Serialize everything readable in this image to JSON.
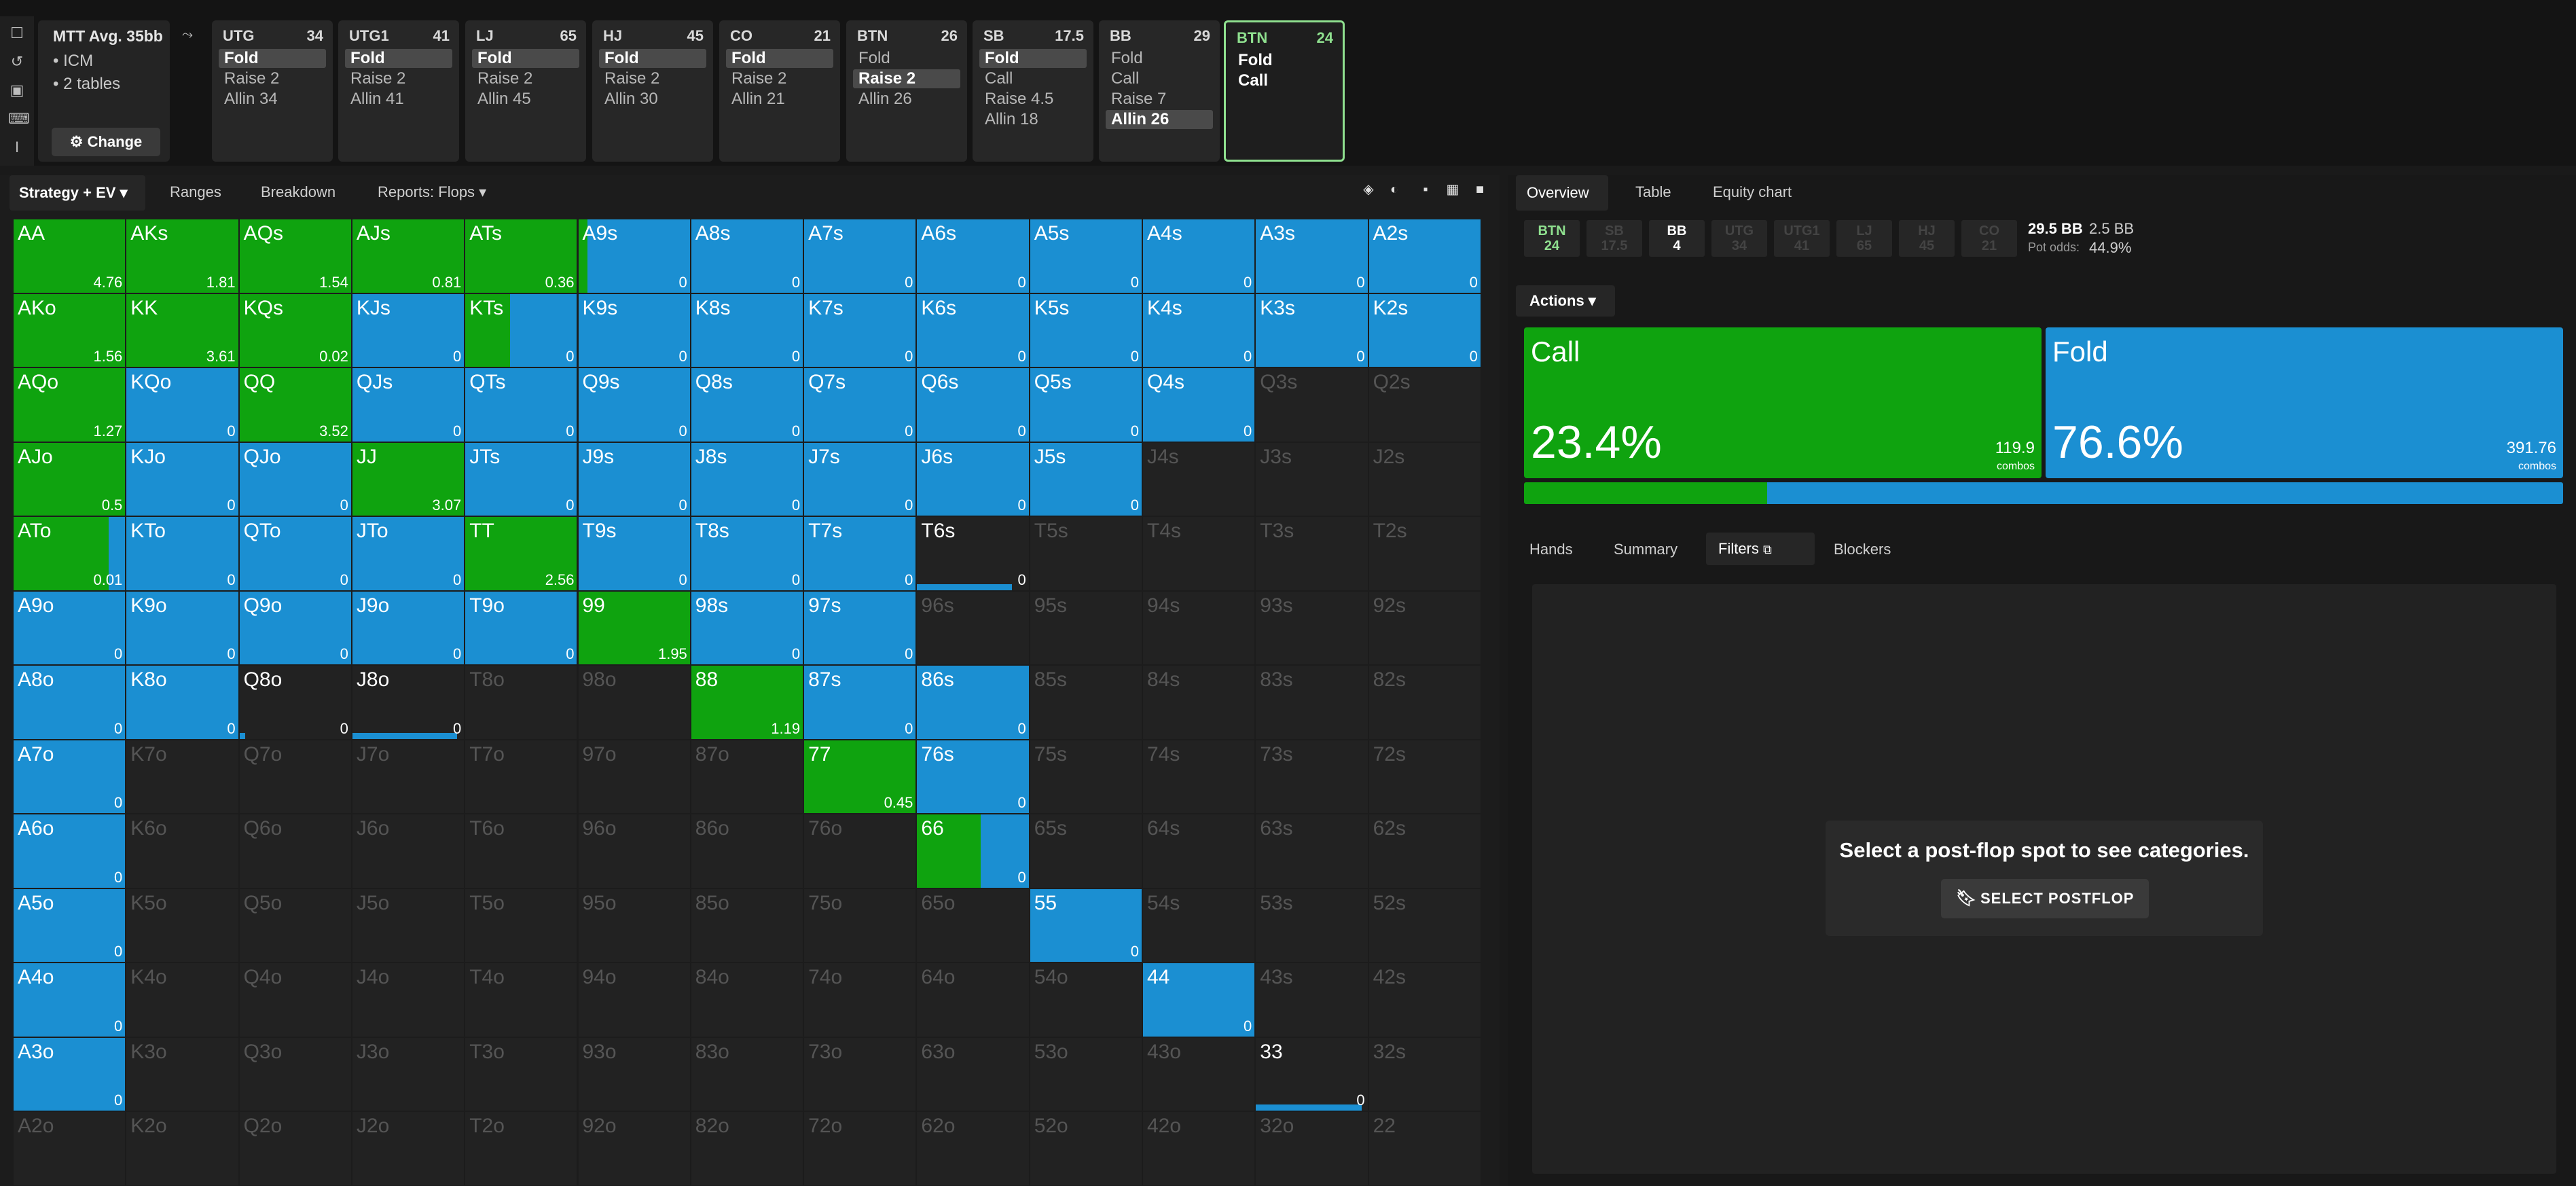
{
  "colors": {
    "raise": "#0fa30f",
    "fold": "#1b8fd2",
    "empty": "#222222",
    "active_border": "#8fe08f"
  },
  "sidebar_icons": [
    "bookmark-icon",
    "history-icon",
    "save-icon",
    "gamepad-icon",
    "text-cursor-icon"
  ],
  "mtt": {
    "title": "MTT Avg. 35bb",
    "items": [
      "• ICM",
      "• 2 tables"
    ],
    "change": "⚙ Change"
  },
  "positions": [
    {
      "name": "UTG",
      "stack": "34",
      "actions": [
        "Fold",
        "Raise 2",
        "Allin 34"
      ],
      "selected": 0
    },
    {
      "name": "UTG1",
      "stack": "41",
      "actions": [
        "Fold",
        "Raise 2",
        "Allin 41"
      ],
      "selected": 0
    },
    {
      "name": "LJ",
      "stack": "65",
      "actions": [
        "Fold",
        "Raise 2",
        "Allin 45"
      ],
      "selected": 0
    },
    {
      "name": "HJ",
      "stack": "45",
      "actions": [
        "Fold",
        "Raise 2",
        "Allin 30"
      ],
      "selected": 0
    },
    {
      "name": "CO",
      "stack": "21",
      "actions": [
        "Fold",
        "Raise 2",
        "Allin 21"
      ],
      "selected": 0
    },
    {
      "name": "BTN",
      "stack": "26",
      "actions": [
        "Fold",
        "Raise 2",
        "Allin 26"
      ],
      "selected": 1
    },
    {
      "name": "SB",
      "stack": "17.5",
      "actions": [
        "Fold",
        "Call",
        "Raise 4.5",
        "Allin 18"
      ],
      "selected": 0
    },
    {
      "name": "BB",
      "stack": "29",
      "actions": [
        "Fold",
        "Call",
        "Raise 7",
        "Allin 26"
      ],
      "selected": 3
    },
    {
      "name": "BTN",
      "stack": "24",
      "actions": [
        "Fold",
        "Call"
      ],
      "selected": -1,
      "active": true
    }
  ],
  "left_tabs": {
    "strategy": "Strategy + EV ▾",
    "ranges": "Ranges",
    "breakdown": "Breakdown",
    "reports": "Reports: Flops ▾"
  },
  "grid": {
    "ranks": [
      "A",
      "K",
      "Q",
      "J",
      "T",
      "9",
      "8",
      "7",
      "6",
      "5",
      "4",
      "3",
      "2"
    ],
    "cells": {
      "AA": {
        "r": 1,
        "v": "4.76"
      },
      "AKs": {
        "r": 1,
        "v": "1.81"
      },
      "AQs": {
        "r": 1,
        "v": "1.54"
      },
      "AJs": {
        "r": 1,
        "v": "0.81"
      },
      "ATs": {
        "r": 1,
        "v": "0.36"
      },
      "A9s": {
        "r": 0.08,
        "v": "0"
      },
      "A8s": {
        "r": 0,
        "v": "0"
      },
      "A7s": {
        "r": 0,
        "v": "0"
      },
      "A6s": {
        "r": 0,
        "v": "0"
      },
      "A5s": {
        "r": 0,
        "v": "0"
      },
      "A4s": {
        "r": 0,
        "v": "0"
      },
      "A3s": {
        "r": 0,
        "v": "0"
      },
      "A2s": {
        "r": 0,
        "v": "0"
      },
      "AKo": {
        "r": 1,
        "v": "1.56"
      },
      "KK": {
        "r": 1,
        "v": "3.61"
      },
      "KQs": {
        "r": 1,
        "v": "0.02"
      },
      "KJs": {
        "r": 0,
        "v": "0"
      },
      "KTs": {
        "r": 0.4,
        "v": "0"
      },
      "K9s": {
        "r": 0,
        "v": "0"
      },
      "K8s": {
        "r": 0,
        "v": "0"
      },
      "K7s": {
        "r": 0,
        "v": "0"
      },
      "K6s": {
        "r": 0,
        "v": "0"
      },
      "K5s": {
        "r": 0,
        "v": "0"
      },
      "K4s": {
        "r": 0,
        "v": "0"
      },
      "K3s": {
        "r": 0,
        "v": "0"
      },
      "K2s": {
        "r": 0,
        "v": "0"
      },
      "AQo": {
        "r": 1,
        "v": "1.27"
      },
      "KQo": {
        "r": 0,
        "v": "0"
      },
      "QQ": {
        "r": 1,
        "v": "3.52"
      },
      "QJs": {
        "r": 0,
        "v": "0"
      },
      "QTs": {
        "r": 0,
        "v": "0"
      },
      "Q9s": {
        "r": 0,
        "v": "0"
      },
      "Q8s": {
        "r": 0,
        "v": "0"
      },
      "Q7s": {
        "r": 0,
        "v": "0"
      },
      "Q6s": {
        "r": 0,
        "v": "0"
      },
      "Q5s": {
        "r": 0,
        "v": "0"
      },
      "Q4s": {
        "r": 0,
        "v": "0"
      },
      "AJo": {
        "r": 1,
        "v": "0.5"
      },
      "KJo": {
        "r": 0,
        "v": "0"
      },
      "QJo": {
        "r": 0,
        "v": "0"
      },
      "JJ": {
        "r": 1,
        "v": "3.07"
      },
      "JTs": {
        "r": 0,
        "v": "0"
      },
      "J9s": {
        "r": 0,
        "v": "0"
      },
      "J8s": {
        "r": 0,
        "v": "0"
      },
      "J7s": {
        "r": 0,
        "v": "0"
      },
      "J6s": {
        "r": 0,
        "v": "0"
      },
      "J5s": {
        "r": 0,
        "v": "0"
      },
      "ATo": {
        "r": 0.85,
        "v": "0.01"
      },
      "KTo": {
        "r": 0,
        "v": "0"
      },
      "QTo": {
        "r": 0,
        "v": "0"
      },
      "JTo": {
        "r": 0,
        "v": "0"
      },
      "TT": {
        "r": 1,
        "v": "2.56"
      },
      "T9s": {
        "r": 0,
        "v": "0"
      },
      "T8s": {
        "r": 0,
        "v": "0"
      },
      "T7s": {
        "r": 0,
        "v": "0"
      },
      "T6s": {
        "r": 0,
        "line": 0.85,
        "v": "0"
      },
      "A9o": {
        "r": 0,
        "v": "0"
      },
      "K9o": {
        "r": 0,
        "v": "0"
      },
      "Q9o": {
        "r": 0,
        "v": "0"
      },
      "J9o": {
        "r": 0,
        "v": "0"
      },
      "T9o": {
        "r": 0,
        "v": "0"
      },
      "99": {
        "r": 1,
        "v": "1.95"
      },
      "98s": {
        "r": 0,
        "v": "0"
      },
      "97s": {
        "r": 0,
        "v": "0"
      },
      "A8o": {
        "r": 0,
        "v": "0"
      },
      "K8o": {
        "r": 0,
        "v": "0"
      },
      "Q8o": {
        "r": 0,
        "line": 0.05,
        "v": "0"
      },
      "J8o": {
        "r": 0,
        "line": 0.94,
        "v": "0"
      },
      "88": {
        "r": 1,
        "v": "1.19"
      },
      "87s": {
        "r": 0,
        "v": "0"
      },
      "86s": {
        "r": 0,
        "v": "0"
      },
      "A7o": {
        "r": 0,
        "v": "0"
      },
      "77": {
        "r": 1,
        "v": "0.45"
      },
      "76s": {
        "r": 0,
        "v": "0"
      },
      "A6o": {
        "r": 0,
        "v": "0"
      },
      "66": {
        "r": 0.57,
        "v": "0"
      },
      "A5o": {
        "r": 0,
        "v": "0"
      },
      "55": {
        "r": 0,
        "v": "0"
      },
      "A4o": {
        "r": 0,
        "v": "0"
      },
      "44": {
        "r": 0,
        "v": "0"
      },
      "A3o": {
        "r": 0,
        "v": "0"
      },
      "33": {
        "r": 0,
        "line": 0.95,
        "v": "0"
      }
    }
  },
  "right_tabs": {
    "overview": "Overview",
    "table": "Table",
    "equity": "Equity chart"
  },
  "seats": [
    {
      "name": "BTN",
      "stack": "24",
      "color": "#8fe08f"
    },
    {
      "name": "SB",
      "stack": "17.5",
      "dim": true
    },
    {
      "name": "BB",
      "stack": "4",
      "color": "#ffffff"
    },
    {
      "name": "UTG",
      "stack": "34",
      "dim": true
    },
    {
      "name": "UTG1",
      "stack": "41",
      "dim": true
    },
    {
      "name": "LJ",
      "stack": "65",
      "dim": true
    },
    {
      "name": "HJ",
      "stack": "45",
      "dim": true
    },
    {
      "name": "CO",
      "stack": "21",
      "dim": true
    }
  ],
  "pot": {
    "total": "29.5 BB",
    "call": "2.5 BB",
    "odds_label": "Pot odds:",
    "odds": "44.9%"
  },
  "actions": {
    "label": "Actions ▾",
    "call": {
      "name": "Call",
      "pct": "23.4%",
      "combos": "119.9",
      "combos_label": "combos",
      "fraction": 0.234
    },
    "fold": {
      "name": "Fold",
      "pct": "76.6%",
      "combos": "391.76",
      "combos_label": "combos",
      "fraction": 0.766
    }
  },
  "bottom_tabs": {
    "hands": "Hands",
    "summary": "Summary",
    "filters": "Filters",
    "blockers": "Blockers"
  },
  "filters": {
    "message": "Select a post-flop spot to see categories.",
    "button": "SELECT POSTFLOP"
  }
}
